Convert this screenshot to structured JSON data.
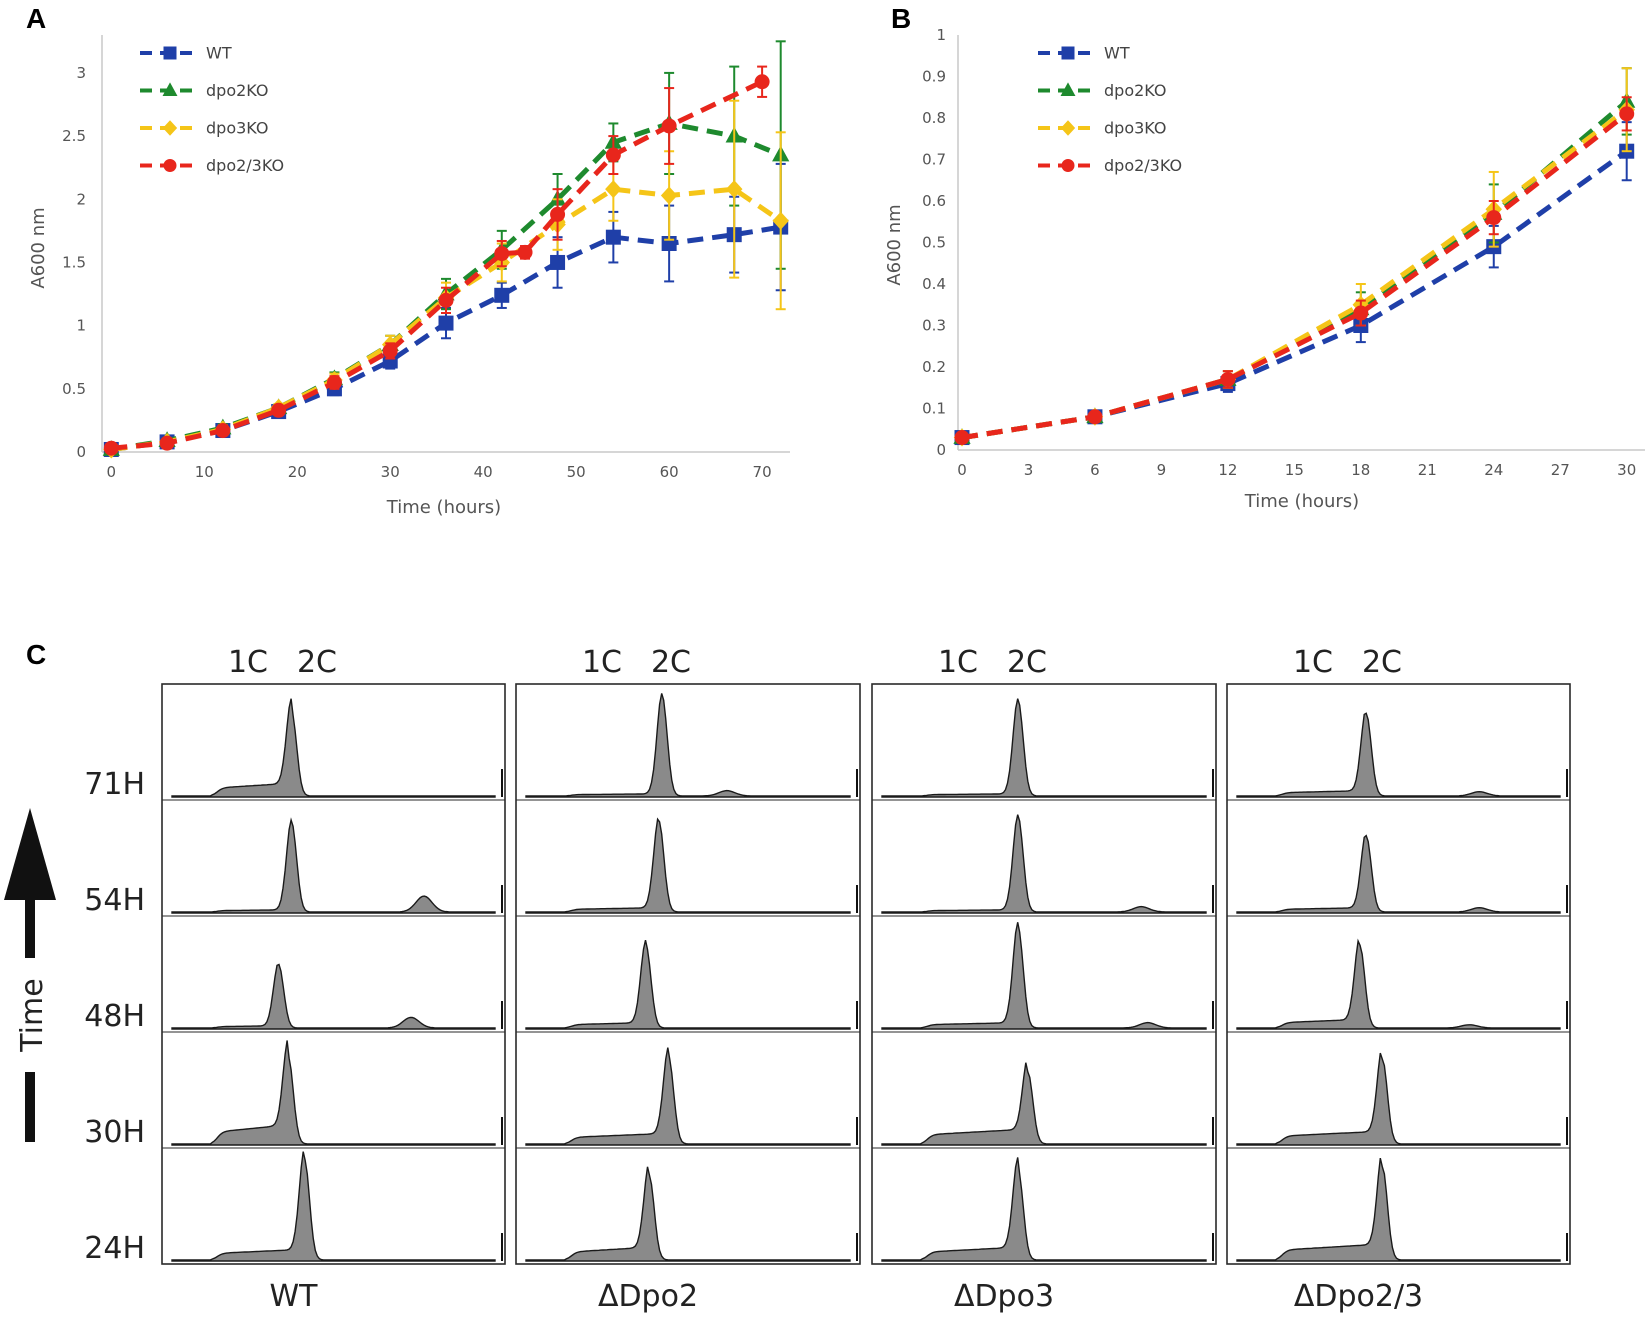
{
  "panel_labels": {
    "a": "A",
    "b": "B",
    "c": "C"
  },
  "colors": {
    "WT": "#1f3fa8",
    "dpo2KO": "#1e8a2e",
    "dpo3KO": "#f5c518",
    "dpo2/3KO": "#e8261c"
  },
  "chart_data": [
    {
      "id": "A",
      "type": "line",
      "title": "",
      "xlabel": "Time (hours)",
      "ylabel": "A600 nm",
      "xlim": [
        -1,
        73
      ],
      "ylim": [
        0,
        3.3
      ],
      "xticks": [
        0,
        10,
        20,
        30,
        40,
        50,
        60,
        70
      ],
      "xtick_labels": [
        "0",
        "10",
        "20",
        "30",
        "40",
        "50",
        "60",
        "70"
      ],
      "yticks": [
        0,
        0.5,
        1,
        1.5,
        2,
        2.5,
        3
      ],
      "ytick_labels": [
        "0",
        "0.5",
        "1",
        "1.5",
        "2",
        "2.5",
        "3"
      ],
      "legend": "top-left",
      "series": [
        {
          "name": "WT",
          "marker": "square",
          "x": [
            0,
            6,
            12,
            18,
            24,
            30,
            36,
            42,
            48,
            54,
            60,
            67,
            72
          ],
          "y": [
            0.02,
            0.08,
            0.17,
            0.32,
            0.5,
            0.72,
            1.02,
            1.24,
            1.5,
            1.7,
            1.65,
            1.72,
            1.78
          ],
          "err": [
            0.02,
            0.02,
            0.03,
            0.03,
            0.05,
            0.06,
            0.12,
            0.1,
            0.2,
            0.2,
            0.3,
            0.3,
            0.5
          ]
        },
        {
          "name": "dpo2KO",
          "marker": "triangle",
          "x": [
            0,
            6,
            12,
            18,
            24,
            30,
            36,
            42,
            48,
            54,
            60,
            67,
            72
          ],
          "y": [
            0.02,
            0.09,
            0.19,
            0.35,
            0.58,
            0.85,
            1.25,
            1.6,
            2.0,
            2.45,
            2.6,
            2.5,
            2.35
          ],
          "err": [
            0.02,
            0.02,
            0.03,
            0.03,
            0.05,
            0.07,
            0.12,
            0.15,
            0.2,
            0.15,
            0.4,
            0.55,
            0.9
          ]
        },
        {
          "name": "dpo3KO",
          "marker": "diamond",
          "x": [
            0,
            6,
            12,
            18,
            24,
            30,
            36,
            42,
            48,
            54,
            60,
            67,
            72
          ],
          "y": [
            0.02,
            0.08,
            0.18,
            0.35,
            0.57,
            0.85,
            1.22,
            1.5,
            1.8,
            2.08,
            2.03,
            2.08,
            1.83
          ],
          "err": [
            0.02,
            0.02,
            0.03,
            0.03,
            0.05,
            0.07,
            0.12,
            0.15,
            0.2,
            0.25,
            0.35,
            0.7,
            0.7
          ]
        },
        {
          "name": "dpo2/3KO",
          "marker": "circle",
          "x": [
            0,
            6,
            12,
            18,
            24,
            30,
            36,
            42,
            44.5,
            48,
            54,
            60,
            70
          ],
          "y": [
            0.03,
            0.07,
            0.17,
            0.33,
            0.55,
            0.8,
            1.2,
            1.57,
            1.58,
            1.88,
            2.35,
            2.58,
            2.93
          ],
          "err": [
            0.02,
            0.02,
            0.03,
            0.03,
            0.05,
            0.06,
            0.1,
            0.1,
            0.05,
            0.2,
            0.15,
            0.3,
            0.12
          ]
        }
      ]
    },
    {
      "id": "B",
      "type": "line",
      "title": "",
      "xlabel": "Time (hours)",
      "ylabel": "A600 nm",
      "xlim": [
        0,
        30.6
      ],
      "ylim": [
        0,
        1
      ],
      "xticks": [
        0,
        3,
        6,
        9,
        12,
        15,
        18,
        21,
        24,
        27,
        30
      ],
      "xtick_labels": [
        "0",
        "3",
        "6",
        "9",
        "12",
        "15",
        "18",
        "21",
        "24",
        "27",
        "30"
      ],
      "yticks": [
        0,
        0.1,
        0.2,
        0.3,
        0.4,
        0.5,
        0.6,
        0.7,
        0.8,
        0.9,
        1
      ],
      "ytick_labels": [
        "0",
        "0.1",
        "0.2",
        "0.3",
        "0.4",
        "0.5",
        "0.6",
        "0.7",
        "0.8",
        "0.9",
        "1"
      ],
      "legend": "top-left",
      "series": [
        {
          "name": "WT",
          "marker": "square",
          "x": [
            0,
            6,
            12,
            18,
            24,
            30
          ],
          "y": [
            0.03,
            0.08,
            0.16,
            0.3,
            0.49,
            0.72
          ],
          "err": [
            0.01,
            0.01,
            0.02,
            0.04,
            0.05,
            0.07
          ]
        },
        {
          "name": "dpo2KO",
          "marker": "triangle",
          "x": [
            0,
            6,
            12,
            18,
            24,
            30
          ],
          "y": [
            0.03,
            0.08,
            0.17,
            0.34,
            0.57,
            0.84
          ],
          "err": [
            0.01,
            0.01,
            0.02,
            0.04,
            0.07,
            0.08
          ]
        },
        {
          "name": "dpo3KO",
          "marker": "diamond",
          "x": [
            0,
            6,
            12,
            18,
            24,
            30
          ],
          "y": [
            0.03,
            0.08,
            0.17,
            0.35,
            0.58,
            0.82
          ],
          "err": [
            0.01,
            0.01,
            0.02,
            0.05,
            0.09,
            0.1
          ]
        },
        {
          "name": "dpo2/3KO",
          "marker": "circle",
          "x": [
            0,
            6,
            12,
            18,
            24,
            30
          ],
          "y": [
            0.03,
            0.08,
            0.17,
            0.33,
            0.56,
            0.81
          ],
          "err": [
            0.01,
            0.01,
            0.02,
            0.03,
            0.04,
            0.04
          ]
        }
      ]
    },
    {
      "id": "C",
      "type": "histogram-grid",
      "xlabel": "",
      "peak_labels": [
        "1C",
        "2C"
      ],
      "strain_labels": [
        "WT",
        "ΔDpo2",
        "ΔDpo3",
        "ΔDpo2/3"
      ],
      "time_labels": [
        "71H",
        "54H",
        "48H",
        "30H",
        "24H"
      ],
      "axis_arrow_label": "Time",
      "strain_profiles": [
        {
          "strain": "WT",
          "rows": [
            {
              "time": "71H",
              "peak_center": 0.37,
              "peak_height": 0.8,
              "shoulder": 0.12,
              "extra_peak": 0,
              "extra_height": 0
            },
            {
              "time": "54H",
              "peak_center": 0.37,
              "peak_height": 0.85,
              "shoulder": 0.02,
              "extra_peak": 0.78,
              "extra_height": 0.15
            },
            {
              "time": "48H",
              "peak_center": 0.33,
              "peak_height": 0.6,
              "shoulder": 0.02,
              "extra_peak": 0.74,
              "extra_height": 0.1
            },
            {
              "time": "30H",
              "peak_center": 0.36,
              "peak_height": 0.82,
              "shoulder": 0.18,
              "extra_peak": 0,
              "extra_height": 0
            },
            {
              "time": "24H",
              "peak_center": 0.41,
              "peak_height": 0.95,
              "shoulder": 0.1,
              "extra_peak": 0,
              "extra_height": 0
            }
          ]
        },
        {
          "strain": "ΔDpo2",
          "rows": [
            {
              "time": "71H",
              "peak_center": 0.42,
              "peak_height": 0.95,
              "shoulder": 0.02,
              "extra_peak": 0.62,
              "extra_height": 0.05
            },
            {
              "time": "54H",
              "peak_center": 0.41,
              "peak_height": 0.86,
              "shoulder": 0.04,
              "extra_peak": 0,
              "extra_height": 0
            },
            {
              "time": "48H",
              "peak_center": 0.37,
              "peak_height": 0.78,
              "shoulder": 0.05,
              "extra_peak": 0,
              "extra_height": 0
            },
            {
              "time": "30H",
              "peak_center": 0.44,
              "peak_height": 0.82,
              "shoulder": 0.1,
              "extra_peak": 0,
              "extra_height": 0
            },
            {
              "time": "24H",
              "peak_center": 0.38,
              "peak_height": 0.8,
              "shoulder": 0.12,
              "extra_peak": 0,
              "extra_height": 0
            }
          ]
        },
        {
          "strain": "ΔDpo3",
          "rows": [
            {
              "time": "71H",
              "peak_center": 0.42,
              "peak_height": 0.9,
              "shoulder": 0.02,
              "extra_peak": 0,
              "extra_height": 0
            },
            {
              "time": "54H",
              "peak_center": 0.42,
              "peak_height": 0.9,
              "shoulder": 0.02,
              "extra_peak": 0.8,
              "extra_height": 0.05
            },
            {
              "time": "48H",
              "peak_center": 0.42,
              "peak_height": 0.95,
              "shoulder": 0.05,
              "extra_peak": 0.82,
              "extra_height": 0.05
            },
            {
              "time": "30H",
              "peak_center": 0.45,
              "peak_height": 0.68,
              "shoulder": 0.14,
              "extra_peak": 0,
              "extra_height": 0
            },
            {
              "time": "24H",
              "peak_center": 0.42,
              "peak_height": 0.85,
              "shoulder": 0.12,
              "extra_peak": 0,
              "extra_height": 0
            }
          ]
        },
        {
          "strain": "ΔDpo2/3",
          "rows": [
            {
              "time": "71H",
              "peak_center": 0.4,
              "peak_height": 0.78,
              "shoulder": 0.05,
              "extra_peak": 0.75,
              "extra_height": 0.04
            },
            {
              "time": "54H",
              "peak_center": 0.4,
              "peak_height": 0.72,
              "shoulder": 0.04,
              "extra_peak": 0.75,
              "extra_height": 0.04
            },
            {
              "time": "48H",
              "peak_center": 0.38,
              "peak_height": 0.78,
              "shoulder": 0.08,
              "extra_peak": 0.72,
              "extra_height": 0.03
            },
            {
              "time": "30H",
              "peak_center": 0.45,
              "peak_height": 0.8,
              "shoulder": 0.12,
              "extra_peak": 0,
              "extra_height": 0
            },
            {
              "time": "24H",
              "peak_center": 0.45,
              "peak_height": 0.88,
              "shoulder": 0.15,
              "extra_peak": 0,
              "extra_height": 0
            }
          ]
        }
      ]
    }
  ]
}
